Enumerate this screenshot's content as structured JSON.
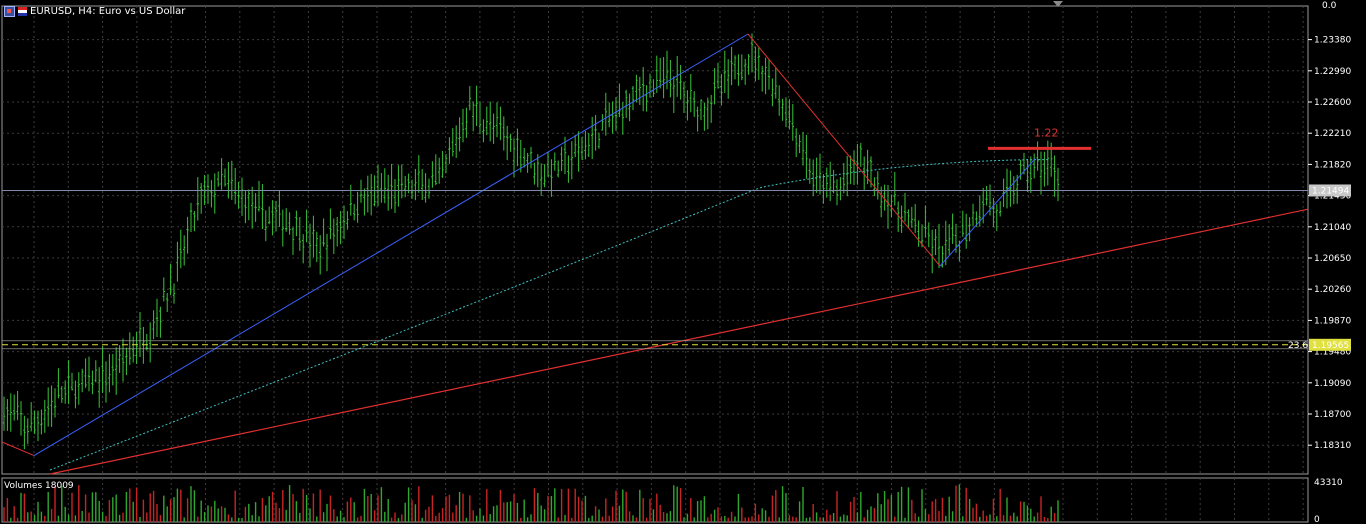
{
  "window": {
    "title": "EURUSD, H4:  Euro vs US Dollar",
    "symbol_icon": "chart-window-icon",
    "flag_icon": "currency-flag-icon"
  },
  "price_axis": {
    "top_value": "0.0",
    "ticks": [
      "1.23380",
      "1.22990",
      "1.22600",
      "1.22210",
      "1.21820",
      "1.21430",
      "1.21040",
      "1.20650",
      "1.20260",
      "1.19870",
      "1.19480",
      "1.19090",
      "1.18700",
      "1.18310"
    ],
    "ymin": 1.1795,
    "ymax": 1.238,
    "current_price": "1.21494",
    "current_price_value": 1.21494,
    "fib_label": "23.6",
    "fib_price": "1.19565",
    "fib_price_value": 1.19565
  },
  "annotation": {
    "text": "1.22",
    "level_value": 1.2202
  },
  "volume": {
    "label": "Volumes 18009",
    "max_tick": "43310",
    "min_tick": "0"
  },
  "colors": {
    "background": "#000000",
    "grid": "#3c3c3c",
    "candles": "#39c439",
    "blue_line": "#3a62ff",
    "red_line": "#e03030",
    "ma": "#40c0c0",
    "fib": "#e0e040",
    "axis": "#ffffff",
    "volume_up": "#2fa82f",
    "volume_down": "#c82424"
  }
}
